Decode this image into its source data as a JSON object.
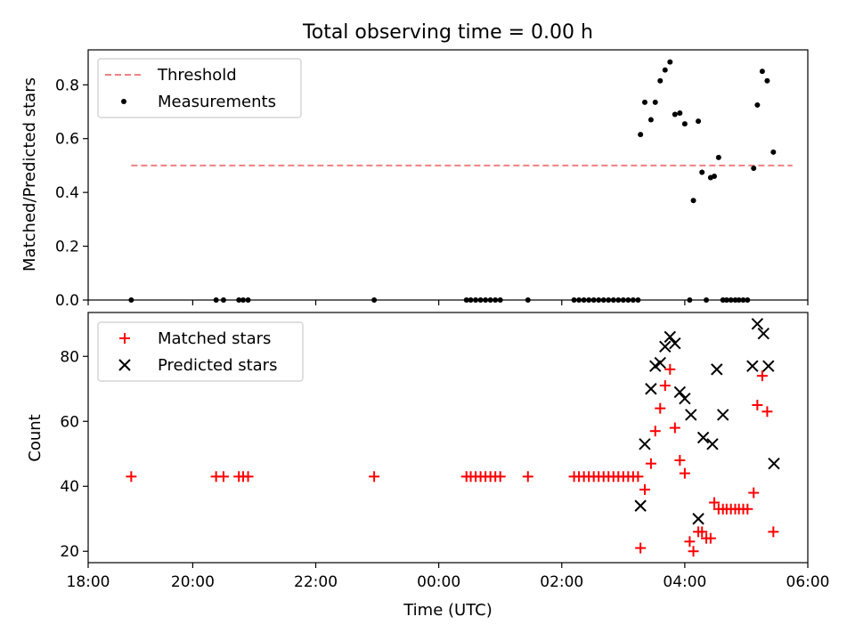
{
  "chart_data": [
    {
      "type": "scatter",
      "title": "Total observing time = 0.00 h",
      "ylabel": "Matched/Predicted stars",
      "xlabel": "",
      "xlim": [
        -1.7,
        10.0
      ],
      "ylim": [
        0.0,
        0.93
      ],
      "yticks": [
        0.0,
        0.2,
        0.4,
        0.6,
        0.8
      ],
      "ytick_labels": [
        "0.0",
        "0.2",
        "0.4",
        "0.6",
        "0.8"
      ],
      "grid": false,
      "legend_position": "top-left",
      "threshold": {
        "name": "Threshold",
        "value": 0.5,
        "x_range": [
          -1.0,
          9.75
        ],
        "color": "#f08080",
        "style": "dashed"
      },
      "series": [
        {
          "name": "Measurements",
          "marker": "dot",
          "color": "#000000",
          "x": [
            -1.0,
            0.38,
            0.5,
            0.75,
            0.82,
            0.9,
            2.95,
            4.45,
            4.52,
            4.6,
            4.68,
            4.76,
            4.84,
            4.92,
            5.0,
            5.45,
            6.2,
            6.28,
            6.36,
            6.44,
            6.52,
            6.6,
            6.68,
            6.76,
            6.84,
            6.92,
            7.0,
            7.08,
            7.16,
            7.24,
            7.28,
            7.35,
            7.45,
            7.52,
            7.6,
            7.68,
            7.76,
            7.84,
            7.92,
            8.0,
            8.08,
            8.14,
            8.22,
            8.28,
            8.35,
            8.42,
            8.48,
            8.55,
            8.62,
            8.68,
            8.75,
            8.82,
            8.88,
            8.95,
            9.02,
            9.12,
            9.18,
            9.26,
            9.34,
            9.44
          ],
          "y": [
            0,
            0,
            0,
            0,
            0,
            0,
            0,
            0,
            0,
            0,
            0,
            0,
            0,
            0,
            0,
            0,
            0,
            0,
            0,
            0,
            0,
            0,
            0,
            0,
            0,
            0,
            0,
            0,
            0,
            0,
            0.615,
            0.735,
            0.67,
            0.735,
            0.815,
            0.855,
            0.885,
            0.69,
            0.695,
            0.655,
            0.0,
            0.37,
            0.665,
            0.475,
            0.0,
            0.455,
            0.46,
            0.53,
            0.0,
            0.0,
            0.0,
            0.0,
            0.0,
            0.0,
            0.0,
            0.49,
            0.725,
            0.85,
            0.815,
            0.55
          ]
        }
      ]
    },
    {
      "type": "scatter",
      "title": "",
      "ylabel": "Count",
      "xlabel": "Time (UTC)",
      "xlim": [
        -1.7,
        10.0
      ],
      "ylim": [
        16.5,
        93.5
      ],
      "yticks": [
        20,
        40,
        60,
        80
      ],
      "ytick_labels": [
        "20",
        "40",
        "60",
        "80"
      ],
      "xticks": [
        -1.7,
        0.0,
        2.0,
        4.0,
        6.0,
        8.0,
        10.0
      ],
      "xtick_labels": [
        "18:00",
        "20:00",
        "22:00",
        "00:00",
        "02:00",
        "04:00",
        "06:00"
      ],
      "grid": false,
      "legend_position": "top-left",
      "series": [
        {
          "name": "Matched stars",
          "marker": "plus",
          "color": "#ff0000",
          "x": [
            -1.0,
            0.38,
            0.5,
            0.75,
            0.82,
            0.9,
            2.95,
            4.45,
            4.52,
            4.6,
            4.68,
            4.76,
            4.84,
            4.92,
            5.0,
            5.45,
            6.2,
            6.28,
            6.36,
            6.44,
            6.52,
            6.6,
            6.68,
            6.76,
            6.84,
            6.92,
            7.0,
            7.08,
            7.16,
            7.24,
            7.28,
            7.35,
            7.45,
            7.52,
            7.6,
            7.68,
            7.76,
            7.84,
            7.92,
            8.0,
            8.08,
            8.14,
            8.22,
            8.28,
            8.35,
            8.42,
            8.48,
            8.55,
            8.62,
            8.68,
            8.75,
            8.82,
            8.88,
            8.95,
            9.02,
            9.12,
            9.18,
            9.26,
            9.34,
            9.44
          ],
          "y": [
            43,
            43,
            43,
            43,
            43,
            43,
            43,
            43,
            43,
            43,
            43,
            43,
            43,
            43,
            43,
            43,
            43,
            43,
            43,
            43,
            43,
            43,
            43,
            43,
            43,
            43,
            43,
            43,
            43,
            43,
            21,
            39,
            47,
            57,
            64,
            71,
            76,
            58,
            48,
            44,
            23,
            20,
            26,
            26,
            24,
            24,
            35,
            33,
            33,
            33,
            33,
            33,
            33,
            33,
            33,
            38,
            65,
            74,
            63,
            26
          ]
        },
        {
          "name": "Predicted stars",
          "marker": "x",
          "color": "#000000",
          "x": [
            7.28,
            7.35,
            7.45,
            7.52,
            7.6,
            7.68,
            7.76,
            7.84,
            7.92,
            8.0,
            8.1,
            8.22,
            8.3,
            8.45,
            8.52,
            8.62,
            9.1,
            9.18,
            9.28,
            9.36,
            9.45
          ],
          "y": [
            34,
            53,
            70,
            77,
            78,
            83,
            86,
            84,
            69,
            67,
            62,
            30,
            55,
            53,
            76,
            62,
            77,
            90,
            87,
            77,
            47
          ]
        }
      ]
    }
  ]
}
